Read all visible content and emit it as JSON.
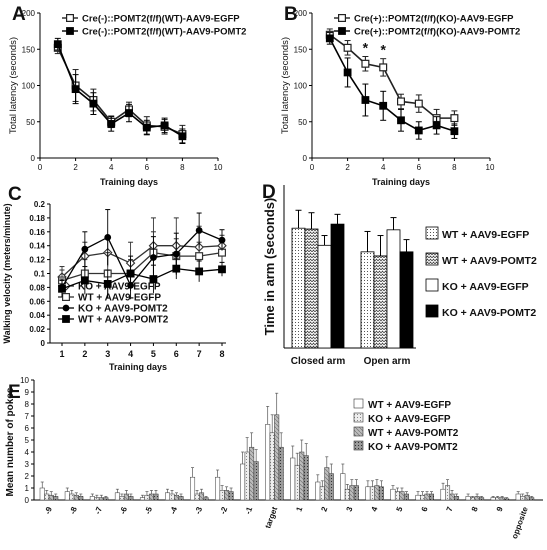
{
  "chart_data": [
    {
      "panel": "A",
      "type": "line",
      "xlabel": "Training days",
      "ylabel": "Total latency (seconds)",
      "xlim": [
        0,
        10
      ],
      "ylim": [
        0,
        200
      ],
      "xticks": [
        0,
        2,
        4,
        6,
        8,
        10
      ],
      "yticks": [
        0,
        50,
        100,
        150,
        200
      ],
      "x": [
        1,
        2,
        3,
        4,
        5,
        6,
        7,
        8
      ],
      "legend_position": "top",
      "series": [
        {
          "name": "Cre(-)::POMT2(f/f)(WT)-AAV9-EGFP",
          "marker": "open-square",
          "color": "#222222",
          "values": [
            152,
            100,
            80,
            50,
            67,
            45,
            43,
            33
          ],
          "errors": [
            8,
            22,
            15,
            8,
            10,
            12,
            10,
            12
          ]
        },
        {
          "name": "Cre(-)::POMT2(f/f)(WT)-AAV9-POMT2",
          "marker": "filled-square",
          "color": "#000000",
          "values": [
            157,
            95,
            75,
            47,
            62,
            42,
            45,
            30
          ],
          "errors": [
            8,
            20,
            15,
            10,
            12,
            10,
            10,
            10
          ]
        }
      ]
    },
    {
      "panel": "B",
      "type": "line",
      "xlabel": "Training days",
      "ylabel": "Total latency (seconds)",
      "xlim": [
        0,
        10
      ],
      "ylim": [
        0,
        200
      ],
      "xticks": [
        0,
        2,
        4,
        6,
        8,
        10
      ],
      "yticks": [
        0,
        50,
        100,
        150,
        200
      ],
      "x": [
        1,
        2,
        3,
        4,
        5,
        6,
        7,
        8
      ],
      "legend_position": "top",
      "annotations": [
        {
          "text": "*",
          "x": 3
        },
        {
          "text": "*",
          "x": 4
        }
      ],
      "series": [
        {
          "name": "Cre(+)::POMT2(f/f)(KO)-AAV9-EGFP",
          "marker": "open-square",
          "color": "#222222",
          "values": [
            170,
            152,
            130,
            125,
            78,
            75,
            55,
            55
          ],
          "errors": [
            8,
            10,
            10,
            12,
            10,
            12,
            12,
            10
          ]
        },
        {
          "name": "Cre(+)::POMT2(f/f)(KO)-AAV9-POMT2",
          "marker": "filled-square",
          "color": "#000000",
          "values": [
            165,
            118,
            80,
            72,
            52,
            38,
            45,
            37
          ],
          "errors": [
            8,
            20,
            22,
            20,
            15,
            12,
            12,
            10
          ]
        }
      ]
    },
    {
      "panel": "C",
      "type": "line",
      "xlabel": "Training days",
      "ylabel": "Walking velocity (meters/minute)",
      "ylim": [
        0,
        0.2
      ],
      "yticks": [
        "0",
        "0.02",
        "0.04",
        "0.06",
        "0.08",
        "0.1",
        "0.12",
        "0.14",
        "0.16",
        "0.18",
        "0.2"
      ],
      "categories": [
        "1",
        "2",
        "3",
        "4",
        "5",
        "6",
        "7",
        "8"
      ],
      "legend_position": "bottom-left",
      "series": [
        {
          "name": "KO + AAV9-EGFP",
          "marker": "open-diamond",
          "color": "#333333",
          "values": [
            0.095,
            0.125,
            0.13,
            0.115,
            0.14,
            0.14,
            0.138,
            0.14
          ],
          "errors": [
            0.015,
            0.02,
            0.02,
            0.03,
            0.04,
            0.04,
            0.03,
            0.015
          ]
        },
        {
          "name": "WT + AAV9-EGFP",
          "marker": "open-square",
          "color": "#333333",
          "values": [
            0.09,
            0.1,
            0.1,
            0.1,
            0.13,
            0.125,
            0.125,
            0.13
          ],
          "errors": [
            0.015,
            0.02,
            0.03,
            0.02,
            0.03,
            0.025,
            0.02,
            0.015
          ]
        },
        {
          "name": "KO + AAV9-POMT2",
          "marker": "filled-circle",
          "color": "#000000",
          "values": [
            0.08,
            0.135,
            0.152,
            0.083,
            0.123,
            0.128,
            0.162,
            0.148
          ],
          "errors": [
            0.012,
            0.025,
            0.04,
            0.02,
            0.03,
            0.03,
            0.025,
            0.015
          ]
        },
        {
          "name": "WT + AAV9-POMT2",
          "marker": "filled-square",
          "color": "#000000",
          "values": [
            0.078,
            0.09,
            0.085,
            0.1,
            0.092,
            0.107,
            0.103,
            0.106
          ],
          "errors": [
            0.012,
            0.02,
            0.02,
            0.025,
            0.02,
            0.015,
            0.015,
            0.01
          ]
        }
      ]
    },
    {
      "panel": "D",
      "type": "bar",
      "ylabel": "Time in arm (seconds)",
      "ylim": [
        0,
        200
      ],
      "categories": [
        "Closed arm",
        "Open arm"
      ],
      "legend_position": "right",
      "series": [
        {
          "name": "WT + AAV9-EGFP",
          "fill": "dots",
          "values": [
            147,
            118
          ],
          "errors": [
            22,
            25
          ]
        },
        {
          "name": "WT + AAV9-POMT2",
          "fill": "zigzag",
          "values": [
            146,
            113
          ],
          "errors": [
            20,
            25
          ]
        },
        {
          "name": "KO + AAV9-EGFP",
          "fill": "white",
          "values": [
            126,
            145
          ],
          "errors": [
            12,
            15
          ]
        },
        {
          "name": "KO + AAV9-POMT2",
          "fill": "black",
          "values": [
            152,
            118
          ],
          "errors": [
            12,
            15
          ]
        }
      ]
    },
    {
      "panel": "E",
      "type": "bar",
      "ylabel": "Mean number of pokes",
      "ylim": [
        0,
        10
      ],
      "yticks": [
        0,
        1,
        2,
        3,
        4,
        5,
        6,
        7,
        8,
        9,
        10
      ],
      "categories": [
        "-9",
        "-8",
        "-7",
        "-6",
        "-5",
        "-4",
        "-3",
        "-2",
        "-1",
        "target",
        "1",
        "2",
        "3",
        "4",
        "5",
        "6",
        "7",
        "8",
        "9",
        "opposite"
      ],
      "legend_position": "top-right",
      "series": [
        {
          "name": "WT + AAV9-EGFP",
          "fill": "white",
          "values": [
            1.0,
            0.7,
            0.3,
            0.6,
            0.2,
            0.6,
            1.9,
            1.9,
            3.0,
            6.3,
            3.5,
            1.5,
            2.2,
            1.1,
            0.9,
            0.4,
            0.9,
            0.3,
            0.2,
            0.5
          ],
          "errors": [
            0.5,
            0.3,
            0.2,
            0.3,
            0.2,
            0.3,
            0.8,
            0.6,
            1.0,
            1.5,
            1.0,
            0.6,
            0.8,
            0.5,
            0.3,
            0.3,
            0.5,
            0.2,
            0.1,
            0.2
          ]
        },
        {
          "name": "KO + AAV9-EGFP",
          "fill": "light-gray",
          "values": [
            0.5,
            0.5,
            0.2,
            0.3,
            0.4,
            0.5,
            0.5,
            0.8,
            4.0,
            5.6,
            2.9,
            1.1,
            0.9,
            1.1,
            0.7,
            0.4,
            1.2,
            0.2,
            0.2,
            0.3
          ],
          "errors": [
            0.3,
            0.3,
            0.2,
            0.2,
            0.3,
            0.3,
            0.3,
            0.4,
            1.2,
            1.5,
            1.0,
            0.5,
            0.4,
            0.5,
            0.3,
            0.3,
            0.5,
            0.1,
            0.1,
            0.2
          ]
        },
        {
          "name": "WT + AAV9-POMT2",
          "fill": "gray",
          "values": [
            0.4,
            0.4,
            0.2,
            0.5,
            0.5,
            0.4,
            0.6,
            0.8,
            4.4,
            7.1,
            4.0,
            2.7,
            1.2,
            1.2,
            0.7,
            0.5,
            0.5,
            0.3,
            0.2,
            0.4
          ],
          "errors": [
            0.3,
            0.2,
            0.2,
            0.3,
            0.3,
            0.2,
            0.3,
            0.3,
            1.2,
            1.8,
            1.0,
            0.9,
            0.5,
            0.5,
            0.3,
            0.2,
            0.3,
            0.2,
            0.1,
            0.2
          ]
        },
        {
          "name": "KO + AAV9-POMT2",
          "fill": "dark-gray",
          "values": [
            0.3,
            0.3,
            0.2,
            0.3,
            0.5,
            0.3,
            0.2,
            0.7,
            3.2,
            4.4,
            3.7,
            2.2,
            1.2,
            1.1,
            0.5,
            0.5,
            0.3,
            0.2,
            0.1,
            0.2
          ],
          "errors": [
            0.2,
            0.2,
            0.1,
            0.2,
            0.3,
            0.2,
            0.1,
            0.3,
            1.0,
            1.2,
            1.0,
            0.8,
            0.5,
            0.5,
            0.2,
            0.2,
            0.2,
            0.1,
            0.1,
            0.1
          ]
        }
      ]
    }
  ]
}
